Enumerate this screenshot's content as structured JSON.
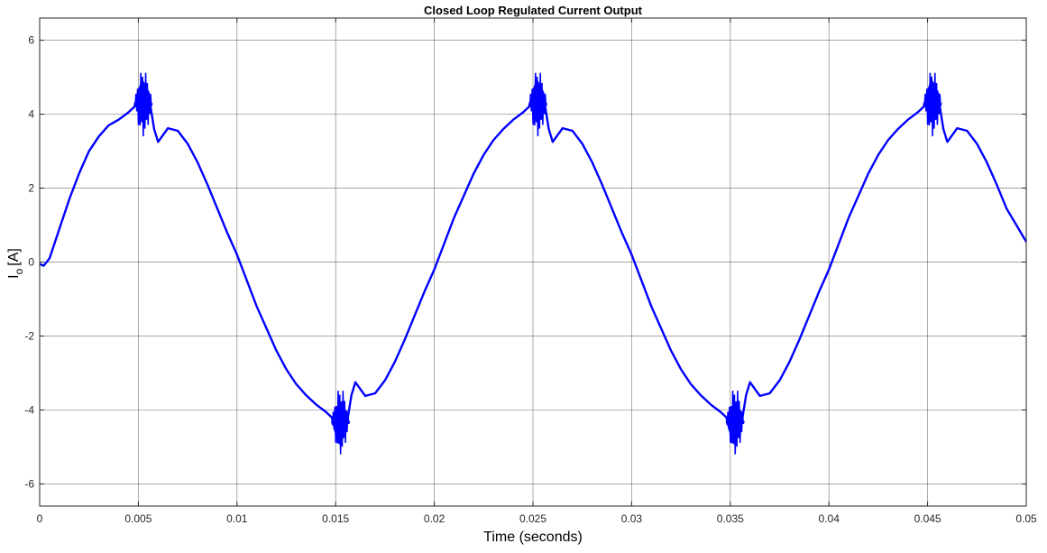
{
  "chart_data": {
    "type": "line",
    "title": "Closed Loop Regulated Current Output",
    "xlabel": "Time (seconds)",
    "ylabel_main": "I",
    "ylabel_sub": "o",
    "ylabel_unit": "[A]",
    "xlim": [
      0,
      0.05
    ],
    "ylim": [
      -6.6,
      6.6
    ],
    "xticks": [
      0,
      0.005,
      0.01,
      0.015,
      0.02,
      0.025,
      0.03,
      0.035,
      0.04,
      0.045,
      0.05
    ],
    "xtick_labels": [
      "0",
      "0.005",
      "0.01",
      "0.015",
      "0.02",
      "0.025",
      "0.03",
      "0.035",
      "0.04",
      "0.045",
      "0.05"
    ],
    "yticks": [
      -6,
      -4,
      -2,
      0,
      2,
      4,
      6
    ],
    "ytick_labels": [
      "-6",
      "-4",
      "-2",
      "0",
      "2",
      "4",
      "6"
    ],
    "grid": true,
    "legend": "none",
    "series": [
      {
        "color": "#0000ff",
        "x": [
          0,
          0.0002,
          0.0005,
          0.001,
          0.0015,
          0.002,
          0.0025,
          0.003,
          0.0035,
          0.004,
          0.0045,
          0.0048,
          0.005,
          0.0052,
          0.0055,
          0.0058,
          0.006,
          0.0065,
          0.007,
          0.0075,
          0.008,
          0.0085,
          0.009,
          0.0095,
          0.01,
          0.0105,
          0.011,
          0.0115,
          0.012,
          0.0125,
          0.013,
          0.0135,
          0.014,
          0.0145,
          0.0148,
          0.015,
          0.0152,
          0.0155,
          0.0158,
          0.016,
          0.0165,
          0.017,
          0.0175,
          0.018,
          0.0185,
          0.019,
          0.0195,
          0.02,
          0.0205,
          0.021,
          0.0215,
          0.022,
          0.0225,
          0.023,
          0.0235,
          0.024,
          0.0245,
          0.0248,
          0.025,
          0.0252,
          0.0255,
          0.0258,
          0.026,
          0.0265,
          0.027,
          0.0275,
          0.028,
          0.0285,
          0.029,
          0.0295,
          0.03,
          0.0305,
          0.031,
          0.0315,
          0.032,
          0.0325,
          0.033,
          0.0335,
          0.034,
          0.0345,
          0.0348,
          0.035,
          0.0352,
          0.0355,
          0.0358,
          0.036,
          0.0365,
          0.037,
          0.0375,
          0.038,
          0.0385,
          0.039,
          0.0395,
          0.04,
          0.0405,
          0.041,
          0.0415,
          0.042,
          0.0425,
          0.043,
          0.0435,
          0.044,
          0.0445,
          0.0448,
          0.045,
          0.0452,
          0.0455,
          0.0458,
          0.046,
          0.0465,
          0.047,
          0.0475,
          0.048,
          0.0485,
          0.049,
          0.0495,
          0.05
        ],
        "y": [
          -0.05,
          -0.1,
          0.1,
          0.9,
          1.7,
          2.4,
          3.0,
          3.4,
          3.7,
          3.85,
          4.05,
          4.2,
          4.6,
          4.9,
          4.6,
          3.6,
          3.25,
          3.62,
          3.55,
          3.2,
          2.7,
          2.1,
          1.45,
          0.8,
          0.2,
          -0.5,
          -1.2,
          -1.8,
          -2.4,
          -2.9,
          -3.3,
          -3.6,
          -3.85,
          -4.05,
          -4.2,
          -4.6,
          -4.9,
          -4.6,
          -3.6,
          -3.25,
          -3.62,
          -3.55,
          -3.2,
          -2.7,
          -2.1,
          -1.45,
          -0.8,
          -0.2,
          0.5,
          1.2,
          1.8,
          2.4,
          2.9,
          3.3,
          3.6,
          3.85,
          4.05,
          4.2,
          4.6,
          4.9,
          4.6,
          3.6,
          3.25,
          3.62,
          3.55,
          3.2,
          2.7,
          2.1,
          1.45,
          0.8,
          0.2,
          -0.5,
          -1.2,
          -1.8,
          -2.4,
          -2.9,
          -3.3,
          -3.6,
          -3.85,
          -4.05,
          -4.2,
          -4.6,
          -4.9,
          -4.6,
          -3.6,
          -3.25,
          -3.62,
          -3.55,
          -3.2,
          -2.7,
          -2.1,
          -1.45,
          -0.8,
          -0.2,
          0.5,
          1.2,
          1.8,
          2.4,
          2.9,
          3.3,
          3.6,
          3.85,
          4.05,
          4.2,
          4.6,
          4.9,
          4.6,
          3.6,
          3.25,
          3.62,
          3.55,
          3.2,
          2.7,
          2.1,
          1.45,
          1.0,
          0.55
        ]
      }
    ],
    "ripple_bursts": [
      {
        "x_start": 0.0048,
        "x_end": 0.0057,
        "center": 4.3,
        "amplitude": 0.9
      },
      {
        "x_start": 0.0148,
        "x_end": 0.0157,
        "center": -4.3,
        "amplitude": 0.9
      },
      {
        "x_start": 0.0248,
        "x_end": 0.0257,
        "center": 4.3,
        "amplitude": 0.9
      },
      {
        "x_start": 0.0348,
        "x_end": 0.0357,
        "center": -4.3,
        "amplitude": 0.9
      },
      {
        "x_start": 0.0448,
        "x_end": 0.0457,
        "center": 4.3,
        "amplitude": 0.9
      }
    ]
  }
}
